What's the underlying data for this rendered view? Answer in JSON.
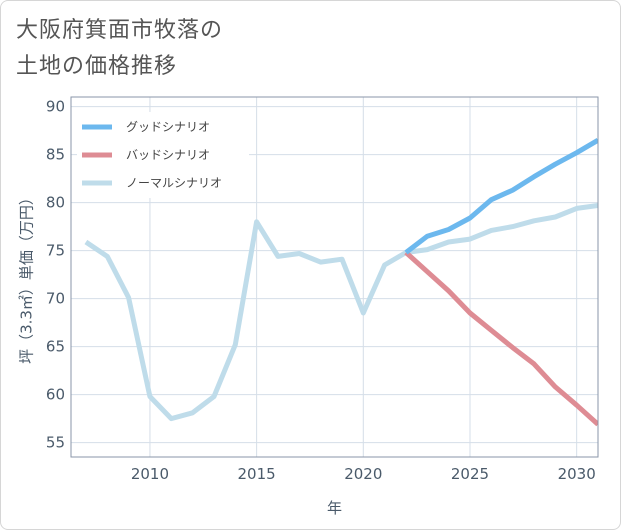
{
  "title": [
    "大阪府箕面市牧落の",
    "土地の価格推移"
  ],
  "chart_data": {
    "type": "line",
    "xlabel": "年",
    "ylabel": "坪（3.3㎡）単価（万円）",
    "xlim": [
      2006.3,
      2031
    ],
    "ylim": [
      53.5,
      91
    ],
    "xticks": [
      2010,
      2015,
      2020,
      2025,
      2030
    ],
    "yticks": [
      55,
      60,
      65,
      70,
      75,
      80,
      85,
      90
    ],
    "grid": true,
    "legend_position": "top-left",
    "series": [
      {
        "name": "グッドシナリオ",
        "color": "#6cb8ee",
        "x": [
          2022,
          2023,
          2024,
          2025,
          2026,
          2027,
          2028,
          2029,
          2030,
          2031
        ],
        "values": [
          74.8,
          76.5,
          77.2,
          78.4,
          80.3,
          81.3,
          82.7,
          84.0,
          85.2,
          86.5
        ]
      },
      {
        "name": "バッドシナリオ",
        "color": "#de8c94",
        "x": [
          2022,
          2023,
          2024,
          2025,
          2026,
          2027,
          2028,
          2029,
          2030,
          2031
        ],
        "values": [
          74.8,
          72.8,
          70.8,
          68.5,
          66.7,
          64.9,
          63.2,
          60.8,
          58.9,
          56.9
        ]
      },
      {
        "name": "ノーマルシナリオ",
        "color": "#bfdcea",
        "x": [
          2007,
          2008,
          2009,
          2010,
          2011,
          2012,
          2013,
          2014,
          2015,
          2016,
          2017,
          2018,
          2019,
          2020,
          2021,
          2022,
          2023,
          2024,
          2025,
          2026,
          2027,
          2028,
          2029,
          2030,
          2031
        ],
        "values": [
          75.9,
          74.4,
          70.1,
          59.8,
          57.5,
          58.1,
          59.8,
          65.2,
          78.0,
          74.4,
          74.7,
          73.8,
          74.1,
          68.5,
          73.5,
          74.8,
          75.1,
          75.9,
          76.2,
          77.1,
          77.5,
          78.1,
          78.5,
          79.4,
          79.7
        ]
      }
    ]
  }
}
